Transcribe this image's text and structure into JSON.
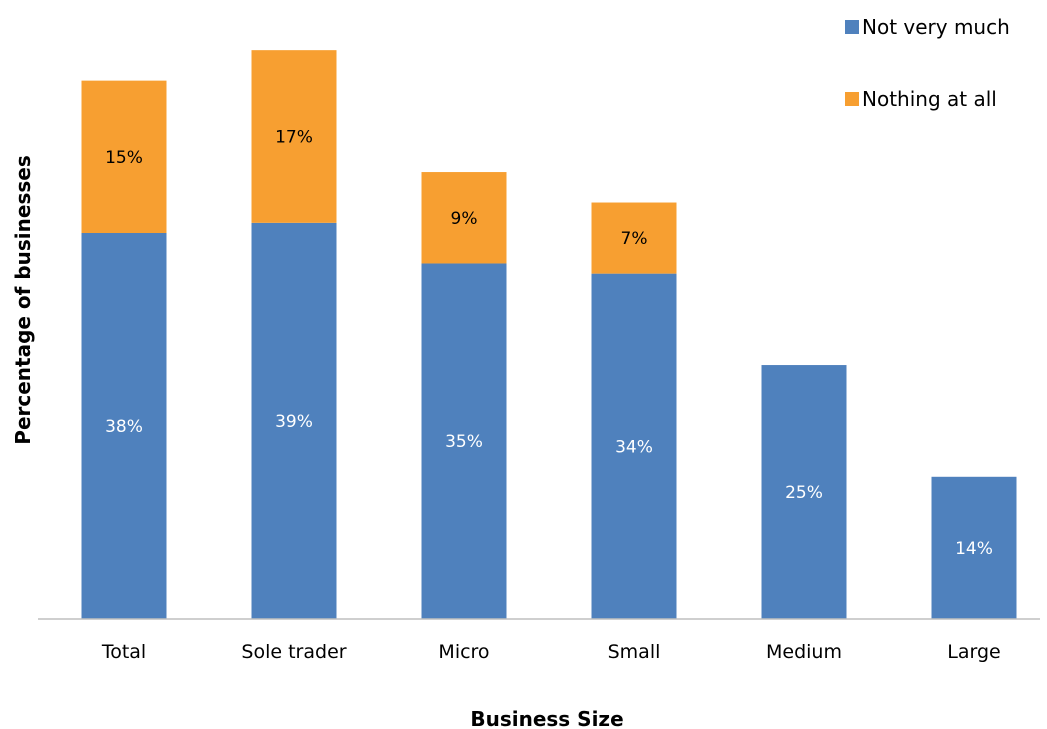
{
  "chart_data": {
    "type": "bar",
    "stacked": true,
    "xlabel": "Business Size",
    "ylabel": "Percentage of businesses",
    "categories": [
      "Total",
      "Sole trader",
      "Micro",
      "Small",
      "Medium",
      "Large"
    ],
    "series": [
      {
        "name": "Not very much",
        "color": "#4f81bd",
        "values": [
          38,
          39,
          35,
          34,
          25,
          14
        ],
        "labels": [
          "38%",
          "39%",
          "35%",
          "34%",
          "25%",
          "14%"
        ]
      },
      {
        "name": "Nothing at all",
        "color": "#f79f31",
        "values": [
          15,
          17,
          9,
          7,
          null,
          null
        ],
        "labels": [
          "15%",
          "17%",
          "9%",
          "7%",
          "",
          ""
        ]
      }
    ],
    "ylim": [
      0,
      57
    ],
    "grid": false,
    "legend": "top-right"
  }
}
